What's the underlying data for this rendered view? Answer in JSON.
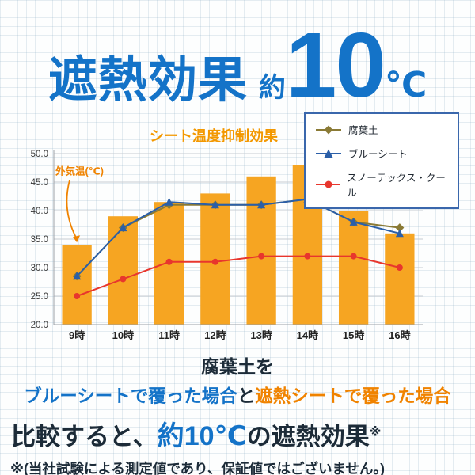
{
  "header": {
    "title": "遮熱効果",
    "approx_label": "約",
    "value": "10",
    "unit": "℃"
  },
  "chart_data": {
    "type": "bar+line",
    "title": "シート温度抑制効果",
    "annotation": "外気温(℃)",
    "categories": [
      "9時",
      "10時",
      "11時",
      "12時",
      "13時",
      "14時",
      "15時",
      "16時"
    ],
    "ylim": [
      20,
      50
    ],
    "ytick_step": 5,
    "grid": "horizontal",
    "legend_position": "top-right",
    "bar_series": {
      "name": "外気温(℃)",
      "color": "#f6a522",
      "values": [
        34,
        39,
        41.5,
        43,
        46,
        48,
        40,
        36
      ]
    },
    "line_series": [
      {
        "name": "腐葉土",
        "marker": "diamond",
        "color": "#8a7a35",
        "values": [
          28.5,
          37,
          41,
          41,
          41,
          42,
          38,
          37
        ]
      },
      {
        "name": "ブルーシート",
        "marker": "triangle",
        "color": "#2b5fa8",
        "values": [
          28.5,
          37,
          41.5,
          41,
          41,
          42,
          38,
          36
        ]
      },
      {
        "name": "スノーテックス・クール",
        "marker": "circle",
        "color": "#e8362d",
        "values": [
          25,
          28,
          31,
          31,
          32,
          32,
          32,
          30
        ]
      }
    ]
  },
  "caption": {
    "line1": "腐葉土を",
    "line2_blue": "ブルーシートで覆った場合",
    "line2_mid": "と",
    "line2_orange": "遮熱シートで覆った場合",
    "line3_prefix": "比較すると、",
    "line3_highlight": "約10℃",
    "line3_suffix": "の遮熱効果",
    "line3_note_mark": "※",
    "footnote": "※(当社試験による測定値であり、保証値ではございません。)"
  },
  "colors": {
    "accent_blue": "#1473c8",
    "accent_orange": "#f08300",
    "bar_orange": "#f6a522",
    "navy_text": "#1c2b38",
    "legend_border": "#3a67ac"
  }
}
